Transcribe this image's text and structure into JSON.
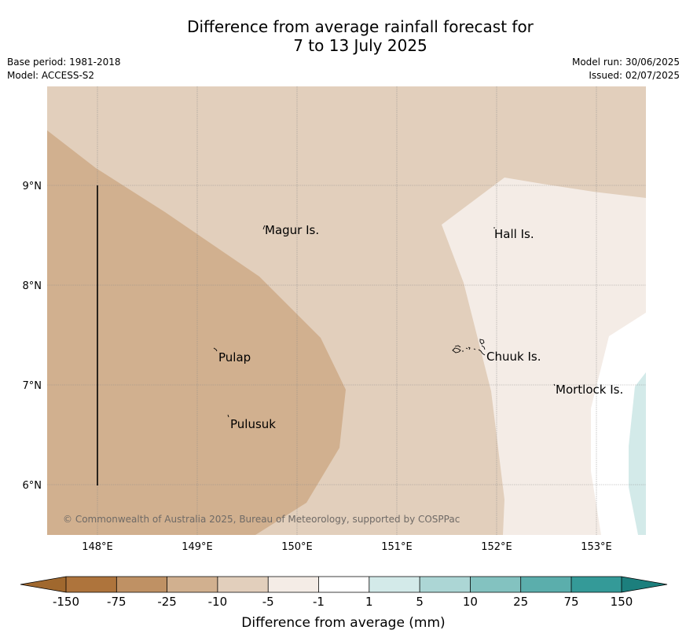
{
  "title": {
    "line1": "Difference from average rainfall forecast for",
    "line2": "7 to 13 July 2025"
  },
  "meta": {
    "base_period": "Base period: 1981-2018",
    "model": "Model: ACCESS-S2",
    "model_run": "Model run: 30/06/2025",
    "issued": "Issued: 02/07/2025"
  },
  "map": {
    "lon_labels": [
      "148°E",
      "149°E",
      "150°E",
      "151°E",
      "152°E",
      "153°E"
    ],
    "lat_labels": [
      "9°N",
      "8°N",
      "7°N",
      "6°N"
    ],
    "places": [
      "Magur Is.",
      "Hall Is.",
      "Pulap",
      "Chuuk Is.",
      "Mortlock Is.",
      "Pulusuk"
    ],
    "copyright": "© Commonwealth of Australia 2025, Bureau of Meteorology, supported by COSPPac"
  },
  "colorbar": {
    "title": "Difference from average (mm)",
    "ticks": [
      "-150",
      "-75",
      "-25",
      "-10",
      "-5",
      "-1",
      "1",
      "5",
      "10",
      "25",
      "75",
      "150"
    ],
    "colors": {
      "extend_low": "#a0682e",
      "bin1": "#ae743c",
      "bin2": "#bf9164",
      "bin3": "#d1b08f",
      "bin4": "#e2cfbc",
      "bin5": "#f4ece6",
      "bin6": "#ffffff",
      "bin7": "#d3eae9",
      "bin8": "#acd6d5",
      "bin9": "#83c2c0",
      "bin10": "#5baeac",
      "bin11": "#349a98",
      "extend_high": "#1c7f7d"
    }
  }
}
